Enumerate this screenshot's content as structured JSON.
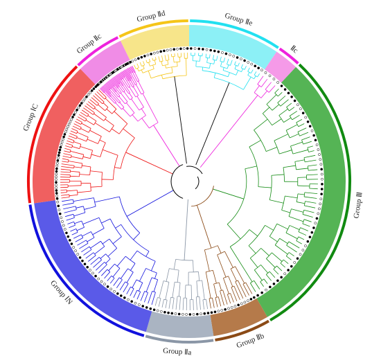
{
  "tree": {
    "center_color": "#000000",
    "groups": [
      {
        "id": "IId_top",
        "label": "Group Ⅱd",
        "color": "#f5c518",
        "band": "#f7e58a",
        "count": 18
      },
      {
        "id": "IIe",
        "label": "Group Ⅱe",
        "color": "#22e0f0",
        "band": "#8cf0f6",
        "count": 20
      },
      {
        "id": "IIc_small",
        "label": "Ⅱc",
        "color": "#ee22dd",
        "band": "#f59ae8",
        "count": 4
      },
      {
        "id": "III",
        "label": "Group Ⅲ",
        "color": "#118a11",
        "band": "#55b455",
        "count": 50
      },
      {
        "id": "IIb",
        "label": "Group Ⅱb",
        "color": "#8b4a16",
        "band": "#b57a4a",
        "count": 14
      },
      {
        "id": "IIa",
        "label": "Group Ⅱa",
        "color": "#8a96a6",
        "band": "#aab4c2",
        "count": 16
      },
      {
        "id": "IN",
        "label": "Group ⅠN",
        "color": "#1111dd",
        "band": "#5a5ae8",
        "count": 38
      },
      {
        "id": "IC",
        "label": "Group ⅠC",
        "color": "#ee1111",
        "band": "#f06060",
        "count": 46
      },
      {
        "id": "IIc_big",
        "label": "Group Ⅱc",
        "color": "#ee22dd",
        "band": "#f08ce6",
        "count": 40
      }
    ]
  }
}
